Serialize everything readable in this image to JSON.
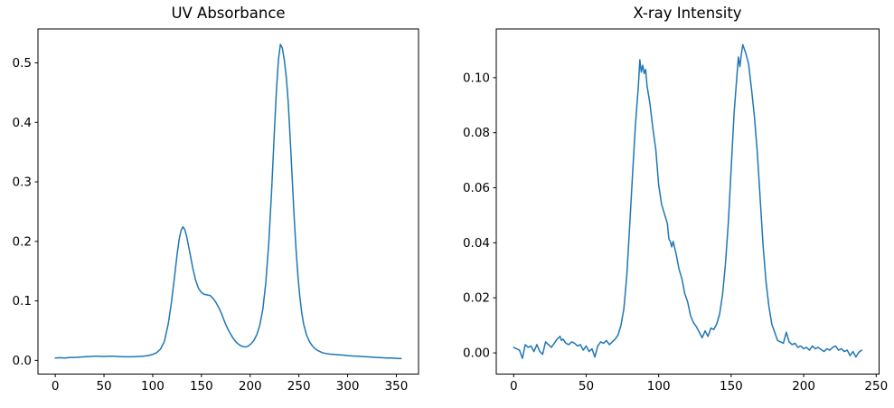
{
  "figure": {
    "background": "#ffffff",
    "axis_color": "#000000",
    "tick_label_color": "#000000"
  },
  "chart_data": [
    {
      "type": "line",
      "title": "UV Absorbance",
      "xlabel": "",
      "ylabel": "",
      "legend": null,
      "grid": false,
      "line_color": "#1f77b4",
      "xlim": [
        -17.75,
        372.75
      ],
      "ylim": [
        -0.023,
        0.557
      ],
      "x_ticks": [
        0,
        50,
        100,
        150,
        200,
        250,
        300,
        350
      ],
      "x_tick_labels": [
        "0",
        "50",
        "100",
        "150",
        "200",
        "250",
        "300",
        "350"
      ],
      "y_ticks": [
        0.0,
        0.1,
        0.2,
        0.3,
        0.4,
        0.5
      ],
      "y_tick_labels": [
        "0.0",
        "0.1",
        "0.2",
        "0.3",
        "0.4",
        "0.5"
      ],
      "points": [
        [
          0,
          0.004
        ],
        [
          5,
          0.0045
        ],
        [
          10,
          0.004
        ],
        [
          15,
          0.005
        ],
        [
          20,
          0.005
        ],
        [
          25,
          0.0055
        ],
        [
          30,
          0.006
        ],
        [
          35,
          0.0065
        ],
        [
          40,
          0.007
        ],
        [
          45,
          0.007
        ],
        [
          50,
          0.0065
        ],
        [
          55,
          0.007
        ],
        [
          60,
          0.007
        ],
        [
          65,
          0.0065
        ],
        [
          70,
          0.006
        ],
        [
          75,
          0.006
        ],
        [
          80,
          0.006
        ],
        [
          85,
          0.0065
        ],
        [
          90,
          0.007
        ],
        [
          95,
          0.008
        ],
        [
          100,
          0.01
        ],
        [
          104,
          0.013
        ],
        [
          108,
          0.019
        ],
        [
          112,
          0.032
        ],
        [
          116,
          0.062
        ],
        [
          119,
          0.095
        ],
        [
          122,
          0.135
        ],
        [
          125,
          0.178
        ],
        [
          127,
          0.202
        ],
        [
          129,
          0.218
        ],
        [
          131,
          0.2245
        ],
        [
          133,
          0.2195
        ],
        [
          135,
          0.207
        ],
        [
          138,
          0.182
        ],
        [
          141,
          0.156
        ],
        [
          144,
          0.135
        ],
        [
          147,
          0.121
        ],
        [
          150,
          0.114
        ],
        [
          153,
          0.111
        ],
        [
          156,
          0.11
        ],
        [
          159,
          0.109
        ],
        [
          162,
          0.104
        ],
        [
          165,
          0.097
        ],
        [
          168,
          0.088
        ],
        [
          171,
          0.077
        ],
        [
          174,
          0.064
        ],
        [
          177,
          0.053
        ],
        [
          180,
          0.044
        ],
        [
          183,
          0.036
        ],
        [
          186,
          0.03
        ],
        [
          189,
          0.026
        ],
        [
          192,
          0.0235
        ],
        [
          195,
          0.0225
        ],
        [
          198,
          0.024
        ],
        [
          201,
          0.028
        ],
        [
          204,
          0.034
        ],
        [
          207,
          0.044
        ],
        [
          210,
          0.06
        ],
        [
          213,
          0.086
        ],
        [
          216,
          0.13
        ],
        [
          219,
          0.195
        ],
        [
          222,
          0.285
        ],
        [
          225,
          0.39
        ],
        [
          227,
          0.455
        ],
        [
          229,
          0.505
        ],
        [
          231,
          0.531
        ],
        [
          233,
          0.525
        ],
        [
          235,
          0.505
        ],
        [
          237,
          0.477
        ],
        [
          239,
          0.435
        ],
        [
          241,
          0.375
        ],
        [
          243,
          0.31
        ],
        [
          245,
          0.245
        ],
        [
          247,
          0.188
        ],
        [
          249,
          0.142
        ],
        [
          251,
          0.106
        ],
        [
          253,
          0.079
        ],
        [
          255,
          0.06
        ],
        [
          258,
          0.042
        ],
        [
          261,
          0.031
        ],
        [
          264,
          0.024
        ],
        [
          267,
          0.019
        ],
        [
          270,
          0.016
        ],
        [
          274,
          0.013
        ],
        [
          278,
          0.0115
        ],
        [
          282,
          0.0105
        ],
        [
          286,
          0.01
        ],
        [
          290,
          0.0095
        ],
        [
          295,
          0.009
        ],
        [
          300,
          0.008
        ],
        [
          305,
          0.0075
        ],
        [
          310,
          0.007
        ],
        [
          315,
          0.0065
        ],
        [
          320,
          0.006
        ],
        [
          325,
          0.0055
        ],
        [
          330,
          0.005
        ],
        [
          335,
          0.0045
        ],
        [
          340,
          0.004
        ],
        [
          345,
          0.004
        ],
        [
          350,
          0.0035
        ],
        [
          355,
          0.003
        ]
      ]
    },
    {
      "type": "line",
      "title": "X-ray Intensity",
      "xlabel": "",
      "ylabel": "",
      "legend": null,
      "grid": false,
      "line_color": "#1f77b4",
      "xlim": [
        -12.0,
        252.0
      ],
      "ylim": [
        -0.0077,
        0.1177
      ],
      "x_ticks": [
        0,
        50,
        100,
        150,
        200,
        250
      ],
      "x_tick_labels": [
        "0",
        "50",
        "100",
        "150",
        "200",
        "250"
      ],
      "y_ticks": [
        0.0,
        0.02,
        0.04,
        0.06,
        0.08,
        0.1
      ],
      "y_tick_labels": [
        "0.00",
        "0.02",
        "0.04",
        "0.06",
        "0.08",
        "0.10"
      ],
      "points": [
        [
          0,
          0.002
        ],
        [
          2,
          0.0015
        ],
        [
          4,
          0.001
        ],
        [
          6,
          -0.002
        ],
        [
          8,
          0.003
        ],
        [
          10,
          0.002
        ],
        [
          12,
          0.0025
        ],
        [
          14,
          0.0005
        ],
        [
          16,
          0.003
        ],
        [
          18,
          0.0005
        ],
        [
          20,
          -0.0005
        ],
        [
          22,
          0.004
        ],
        [
          24,
          0.003
        ],
        [
          26,
          0.002
        ],
        [
          28,
          0.0035
        ],
        [
          30,
          0.005
        ],
        [
          32,
          0.006
        ],
        [
          33,
          0.0045
        ],
        [
          34,
          0.005
        ],
        [
          36,
          0.0035
        ],
        [
          38,
          0.003
        ],
        [
          40,
          0.004
        ],
        [
          42,
          0.0035
        ],
        [
          44,
          0.0025
        ],
        [
          46,
          0.003
        ],
        [
          48,
          0.001
        ],
        [
          50,
          0.0025
        ],
        [
          52,
          0.0005
        ],
        [
          54,
          0.0015
        ],
        [
          56,
          -0.0015
        ],
        [
          58,
          0.0025
        ],
        [
          60,
          0.004
        ],
        [
          62,
          0.0035
        ],
        [
          64,
          0.0045
        ],
        [
          66,
          0.003
        ],
        [
          68,
          0.004
        ],
        [
          70,
          0.005
        ],
        [
          72,
          0.0065
        ],
        [
          74,
          0.01
        ],
        [
          76,
          0.016
        ],
        [
          78,
          0.028
        ],
        [
          80,
          0.046
        ],
        [
          82,
          0.065
        ],
        [
          84,
          0.083
        ],
        [
          86,
          0.097
        ],
        [
          87,
          0.1065
        ],
        [
          88,
          0.102
        ],
        [
          89,
          0.1045
        ],
        [
          90,
          0.1015
        ],
        [
          91,
          0.103
        ],
        [
          92,
          0.097
        ],
        [
          94,
          0.0905
        ],
        [
          96,
          0.0815
        ],
        [
          98,
          0.074
        ],
        [
          100,
          0.061
        ],
        [
          102,
          0.054
        ],
        [
          104,
          0.0505
        ],
        [
          106,
          0.047
        ],
        [
          107,
          0.0415
        ],
        [
          108,
          0.0405
        ],
        [
          109,
          0.0385
        ],
        [
          110,
          0.0405
        ],
        [
          112,
          0.036
        ],
        [
          114,
          0.0305
        ],
        [
          116,
          0.027
        ],
        [
          118,
          0.0215
        ],
        [
          120,
          0.0185
        ],
        [
          122,
          0.0135
        ],
        [
          124,
          0.011
        ],
        [
          126,
          0.0095
        ],
        [
          128,
          0.0075
        ],
        [
          130,
          0.0055
        ],
        [
          132,
          0.008
        ],
        [
          134,
          0.006
        ],
        [
          136,
          0.009
        ],
        [
          138,
          0.0085
        ],
        [
          140,
          0.0105
        ],
        [
          142,
          0.014
        ],
        [
          144,
          0.021
        ],
        [
          146,
          0.032
        ],
        [
          148,
          0.047
        ],
        [
          150,
          0.067
        ],
        [
          152,
          0.087
        ],
        [
          154,
          0.101
        ],
        [
          155,
          0.1075
        ],
        [
          156,
          0.104
        ],
        [
          157,
          0.1085
        ],
        [
          158,
          0.112
        ],
        [
          160,
          0.109
        ],
        [
          162,
          0.105
        ],
        [
          164,
          0.096
        ],
        [
          166,
          0.086
        ],
        [
          168,
          0.073
        ],
        [
          170,
          0.056
        ],
        [
          172,
          0.039
        ],
        [
          174,
          0.026
        ],
        [
          176,
          0.017
        ],
        [
          178,
          0.0105
        ],
        [
          180,
          0.0075
        ],
        [
          182,
          0.0045
        ],
        [
          184,
          0.004
        ],
        [
          186,
          0.0035
        ],
        [
          188,
          0.0075
        ],
        [
          190,
          0.004
        ],
        [
          192,
          0.003
        ],
        [
          194,
          0.0035
        ],
        [
          196,
          0.002
        ],
        [
          198,
          0.0025
        ],
        [
          200,
          0.0015
        ],
        [
          202,
          0.002
        ],
        [
          204,
          0.001
        ],
        [
          206,
          0.0025
        ],
        [
          208,
          0.0015
        ],
        [
          210,
          0.002
        ],
        [
          212,
          0.0012
        ],
        [
          214,
          0.0005
        ],
        [
          216,
          0.0015
        ],
        [
          218,
          0.001
        ],
        [
          220,
          0.002
        ],
        [
          222,
          0.0025
        ],
        [
          224,
          0.001
        ],
        [
          226,
          0.0015
        ],
        [
          228,
          0.0005
        ],
        [
          230,
          0.001
        ],
        [
          232,
          -0.001
        ],
        [
          234,
          0.0005
        ],
        [
          236,
          -0.0015
        ],
        [
          238,
          0.0002
        ],
        [
          240,
          0.001
        ]
      ]
    }
  ]
}
